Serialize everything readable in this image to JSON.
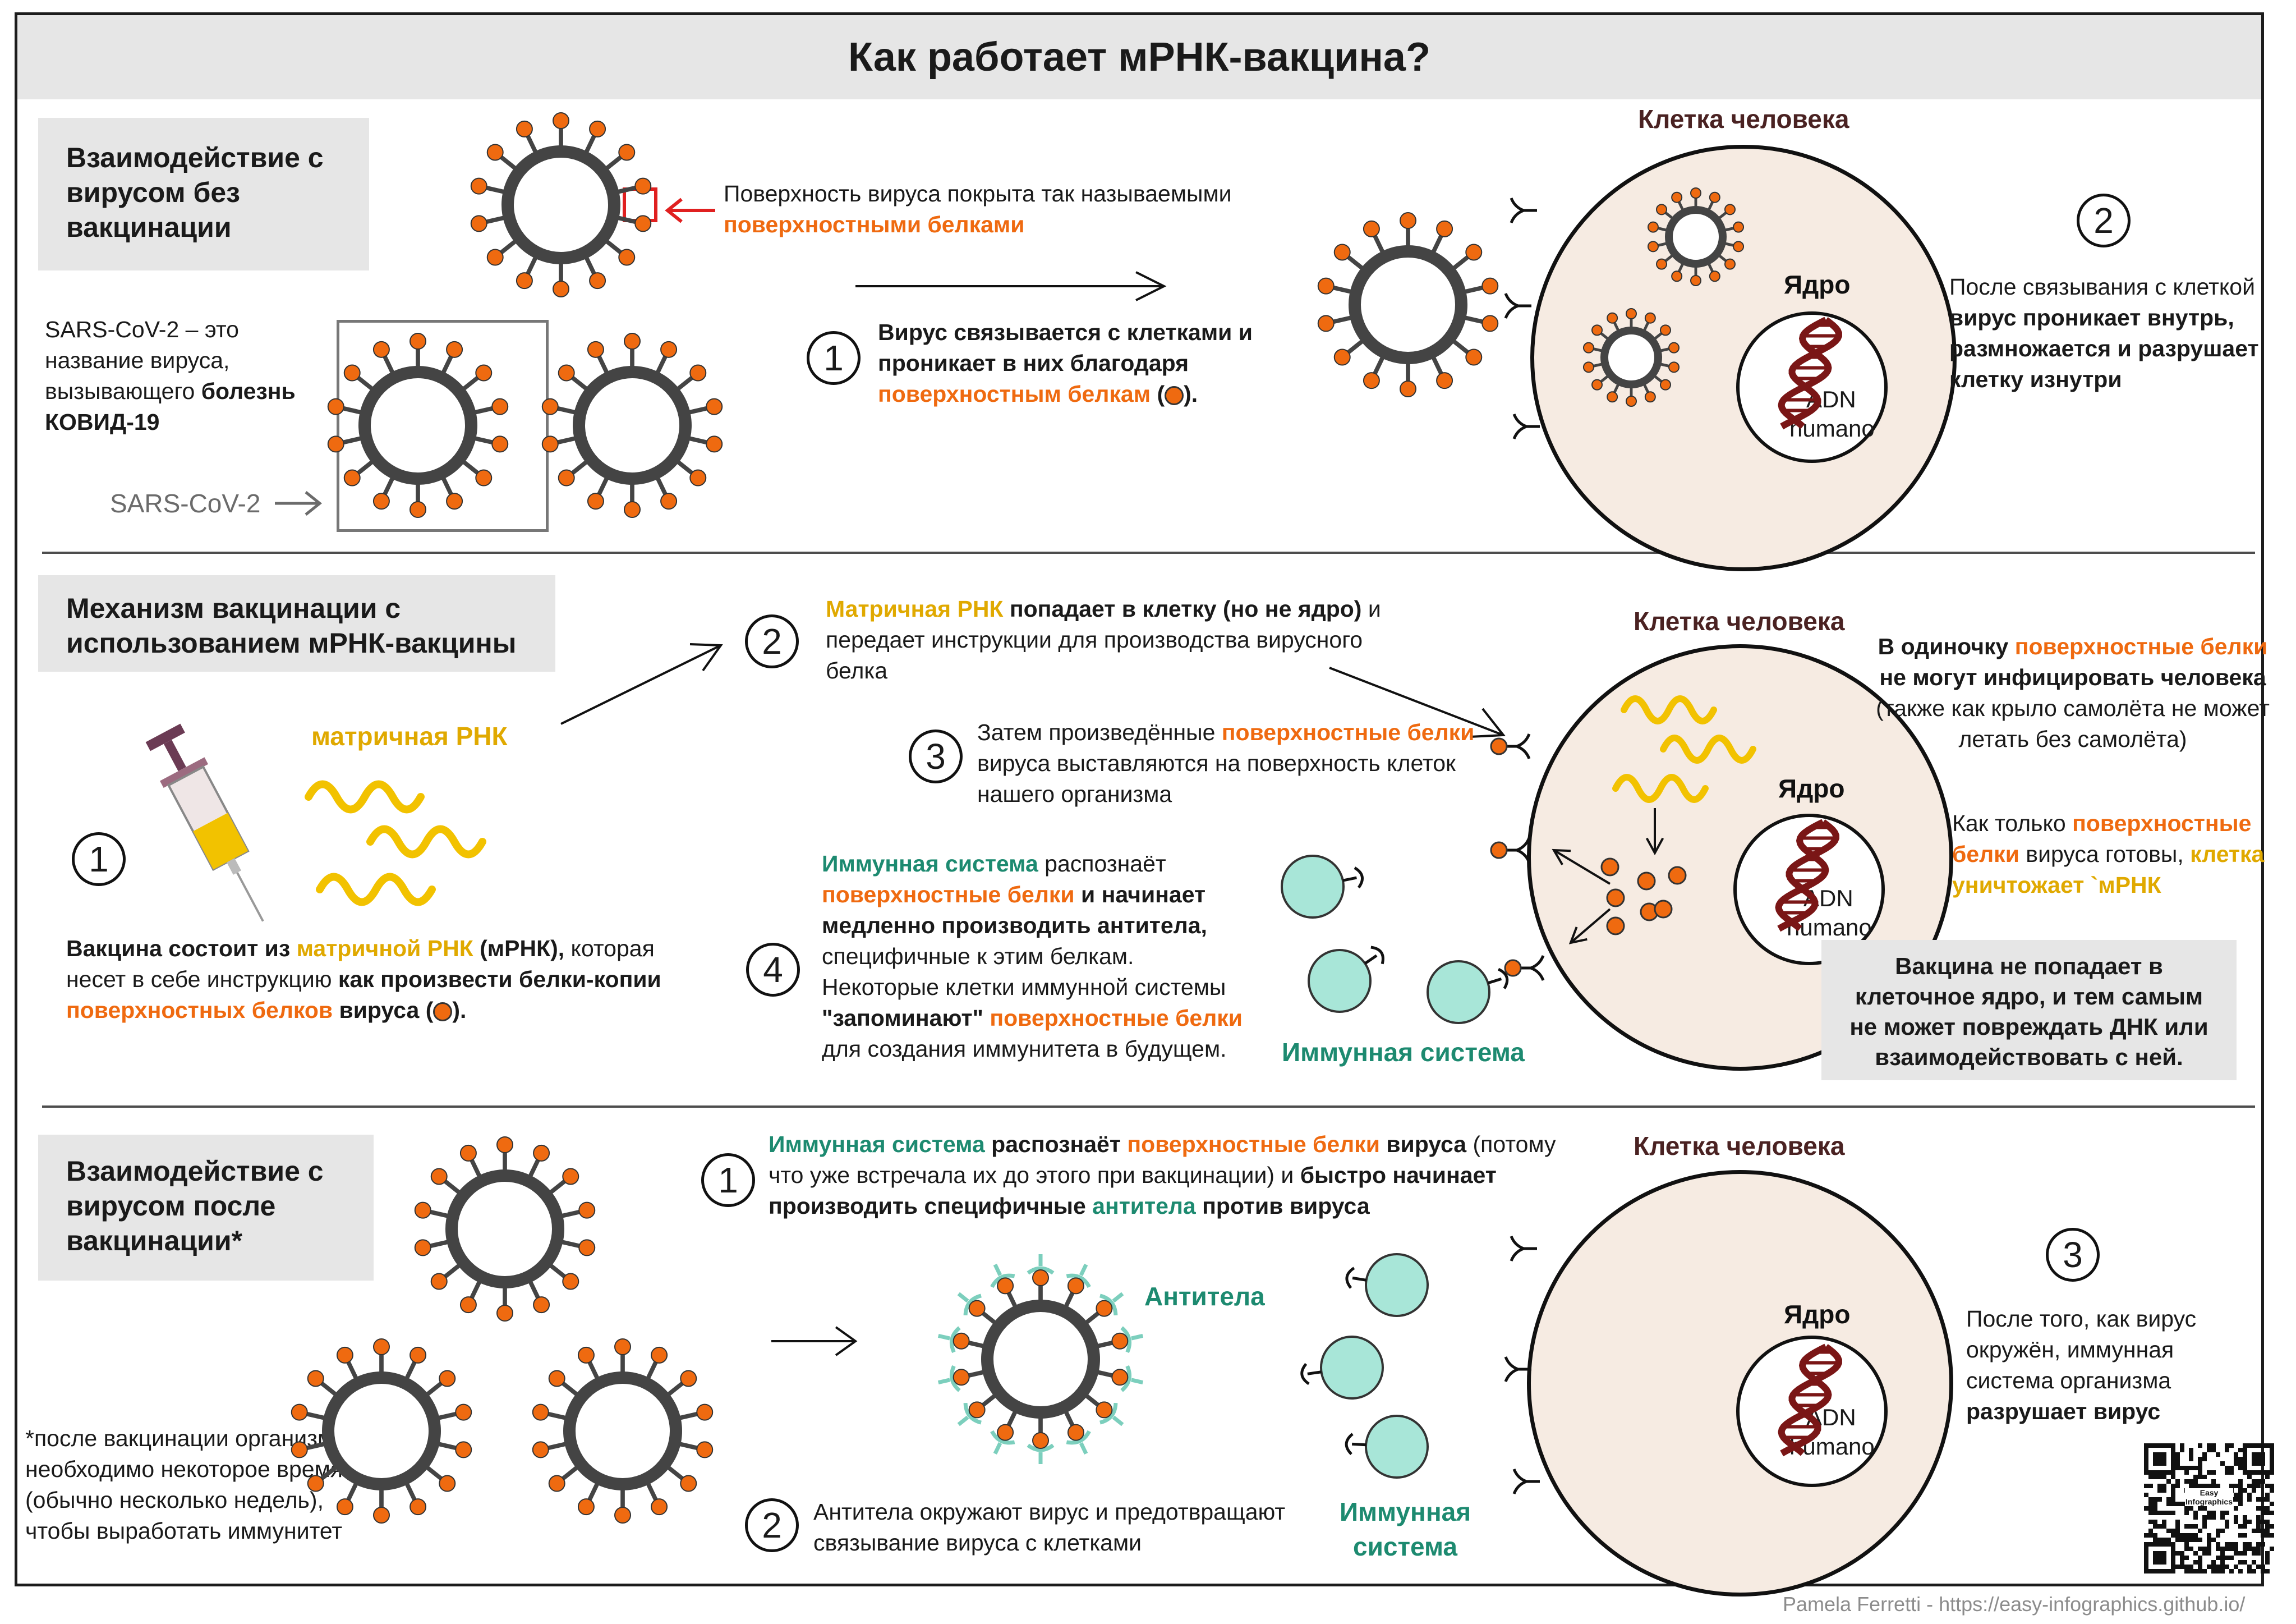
{
  "title": "Как работает мРНК-вакцина?",
  "colors": {
    "orange": "#ef6a10",
    "yellow": "#e8b400",
    "teal": "#1d8a70",
    "immune_cell": "#a8e6d8",
    "dark_red": "#7a1616",
    "cell": "#f6ebe2",
    "virus": "#444444"
  },
  "section1": {
    "heading": "Взаимодействие с вирусом без вакцинации",
    "intro_1": "SARS-CoV-2 – это название вируса, вызывающего ",
    "intro_2": "болезнь КОВИД-19",
    "virus_label": "SARS-CoV-2",
    "surface_1": "Поверхность вируса покрыта так называемыми",
    "surface_2": "поверхностными белками",
    "step1_num": "1",
    "step1_1": "Вирус связывается с клетками и проникает в них благодаря ",
    "step1_2": "поверхностным белкам",
    "step1_3": " (",
    "step1_4": ").",
    "cell_label": "Клетка человека",
    "nucleus_label": "Ядро",
    "dna_line1": "ADN",
    "dna_line2": "humano",
    "step2_num": "2",
    "step2_1": "После связывания с клеткой ",
    "step2_2": "вирус проникает внутрь, размножается и разрушает клетку изнутри"
  },
  "section2": {
    "heading": "Механизм вакцинации с использованием мРНК-вакцины",
    "mrna_label": "матричная РНК",
    "step1_num": "1",
    "vaccine_1": "Вакцина состоит из ",
    "vaccine_2": "матричной РНК",
    "vaccine_3": " (мРНК),",
    "vaccine_4": " которая несет в себе инструкцию ",
    "vaccine_5": "как произвести белки-копии ",
    "vaccine_6": "поверхностных белков",
    "vaccine_7": " вируса (",
    "vaccine_8": ").",
    "step2_num": "2",
    "step2_1": "Матричная РНК",
    "step2_2": " попадает в клетку (но не ядро)",
    "step2_3": " и передает инструкции для производства вирусного белка",
    "step3_num": "3",
    "step3_1": "Затем произведённые ",
    "step3_2": "поверхностные белки",
    "step3_3": " вируса выставляются на поверхность клеток нашего организма",
    "step4_num": "4",
    "step4_1": "Иммунная система",
    "step4_2": " распознаёт ",
    "step4_3": "поверхностные белки",
    "step4_4": " и начинает медленно производить антитела,",
    "step4_5": " специфичные к этим белкам. Некоторые клетки иммунной системы ",
    "step4_6": "\"запоминают\"",
    "step4_7": " ",
    "step4_8": "поверхностные белки",
    "step4_9": " для создания иммунитета в будущем.",
    "immune_label": "Иммунная система",
    "cell_label": "Клетка человека",
    "nucleus_label": "Ядро",
    "dna_line1": "ADN",
    "dna_line2": "humano",
    "right_1": "В одиночку ",
    "right_2": "поверхностные белки",
    "right_3": " не могут инфицировать человека",
    "right_4": " (также как крыло самолёта не может летать без самолёта)",
    "right_5": "Как только ",
    "right_6": "поверхностные белки",
    "right_7": " вируса готовы, ",
    "right_8": "клетка уничтожает `мРНК",
    "box_text": "Вакцина не попадает в клеточное ядро, и тем самым не может повреждать ДНК или взаимодействовать с ней."
  },
  "section3": {
    "heading": "Взаимодействие с вирусом после вакцинации*",
    "note": "*после вакцинации организму необходимо некоторое время (обычно несколько недель), чтобы выработать иммунитет",
    "step1_num": "1",
    "step1_1": "Иммунная система",
    "step1_2": "  распознаёт ",
    "step1_3": "поверхностные белки",
    "step1_4": " вируса",
    "step1_5": " (потому что уже встречала их до этого при вакцинации) и ",
    "step1_6": "быстро начинает производить специфичные ",
    "step1_7": "антитела",
    "step1_8": " против вируса",
    "antibodies_label": "Антитела",
    "step2_num": "2",
    "step2_text": "Антитела окружают вирус и предотвращают связывание вируса с клетками",
    "immune_label": "Иммунная система",
    "cell_label": "Клетка человека",
    "nucleus_label": "Ядро",
    "dna_line1": "ADN",
    "dna_line2": "humano",
    "step3_num": "3",
    "step3_1": "После того, как вирус окружён, иммунная система организма ",
    "step3_2": "разрушает вирус",
    "qr_text": "Easy Infographics"
  },
  "footer": "Pamela Ferretti - https://easy-infographics.github.io/"
}
